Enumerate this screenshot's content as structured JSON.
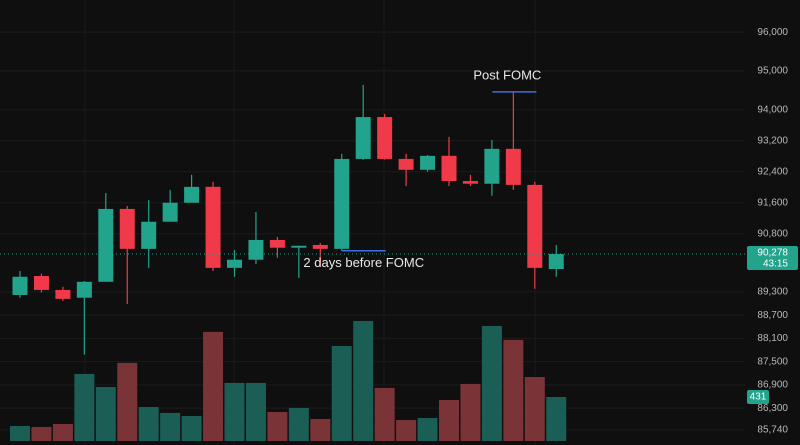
{
  "chart_data": {
    "type": "candlestick",
    "up_color": "#22a38b",
    "down_color": "#f03a4a",
    "up_volume_color": "#1b5e56",
    "down_volume_color": "#7a3438",
    "open": [
      89220,
      89710,
      89350,
      89150,
      89560,
      91440,
      90410,
      91110,
      91600,
      92010,
      89920,
      90130,
      90640,
      90440,
      90510,
      90410,
      92730,
      93810,
      92730,
      92450,
      92810,
      92160,
      92090,
      92990,
      92060,
      89890
    ],
    "high": [
      89840,
      89770,
      89430,
      89580,
      91850,
      91520,
      91670,
      91930,
      92320,
      92140,
      90380,
      91360,
      90720,
      90490,
      90560,
      92860,
      94640,
      93890,
      92860,
      92830,
      93300,
      92320,
      93220,
      94460,
      92140,
      90510
    ],
    "low": [
      89150,
      89280,
      89070,
      87680,
      89560,
      88990,
      89920,
      91110,
      91600,
      89840,
      89690,
      90020,
      90180,
      89660,
      89950,
      90360,
      92710,
      92710,
      92030,
      92400,
      92030,
      92030,
      91780,
      91930,
      89380,
      89690
    ],
    "close": [
      89690,
      89350,
      89120,
      89560,
      91440,
      90410,
      91110,
      91600,
      92010,
      89920,
      90130,
      90640,
      90440,
      90490,
      90410,
      92730,
      93810,
      92730,
      92450,
      92810,
      92160,
      92090,
      92990,
      92060,
      89920,
      90278
    ],
    "volume": [
      147,
      137,
      167,
      657,
      529,
      765,
      333,
      275,
      245,
      1069,
      569,
      569,
      284,
      324,
      216,
      931,
      1176,
      520,
      206,
      225,
      402,
      559,
      1127,
      990,
      627,
      431
    ],
    "ylim": [
      85350,
      96830
    ],
    "vlim": [
      0,
      4320
    ],
    "yticks": [
      {
        "value": 96000,
        "label": "96,000"
      },
      {
        "value": 95000,
        "label": "95,000"
      },
      {
        "value": 94000,
        "label": "94,000"
      },
      {
        "value": 93200,
        "label": "93,200"
      },
      {
        "value": 92400,
        "label": "92,400"
      },
      {
        "value": 91600,
        "label": "91,600"
      },
      {
        "value": 90800,
        "label": "90,800"
      },
      {
        "value": 89300,
        "label": "89,300"
      },
      {
        "value": 88700,
        "label": "88,700"
      },
      {
        "value": 88100,
        "label": "88,100"
      },
      {
        "value": 87500,
        "label": "87,500"
      },
      {
        "value": 86900,
        "label": "86,900"
      },
      {
        "value": 86300,
        "label": "86,300"
      },
      {
        "value": 85740,
        "label": "85,740"
      }
    ],
    "last_price": {
      "value": 90278,
      "label": "90,278"
    },
    "countdown": "43:15",
    "annotations": [
      "Post FOMC",
      "2 days before FOMC"
    ]
  }
}
